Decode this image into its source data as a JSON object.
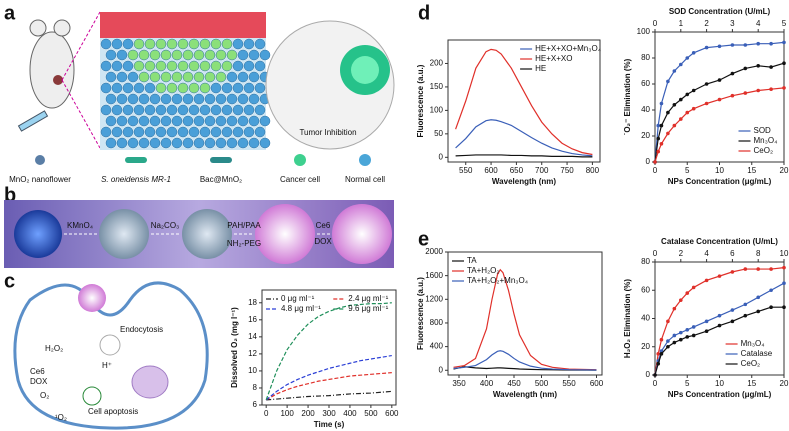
{
  "panels": {
    "a": {
      "label": "a",
      "inset_text": "Tumor Inhibition",
      "legend": [
        "MnO₂ nanoflower",
        "S. oneidensis MR-1",
        "Bac@MnO₂",
        "Cancer cell",
        "Normal cell"
      ]
    },
    "b": {
      "label": "b",
      "steps": [
        "KMnO₄",
        "Na₂CO₃",
        "PAH/PAA",
        "NH₂-PEG",
        "Ce6",
        "DOX"
      ]
    },
    "c": {
      "label": "c",
      "texts": [
        "Endocytosis",
        "H₂O₂",
        "H⁺",
        "Ce6",
        "DOX",
        "O₂",
        "¹O₂",
        "Cell apoptosis"
      ]
    },
    "d": {
      "label": "d"
    },
    "e": {
      "label": "e"
    }
  },
  "chart_data": [
    {
      "type": "line",
      "x_label": "Time (s)",
      "y_label": "Dissolved O₂ (mg l⁻¹)",
      "x": [
        0,
        50,
        100,
        150,
        200,
        250,
        300,
        350,
        400,
        450,
        500,
        550,
        600
      ],
      "xlim": [
        -20,
        620
      ],
      "xticks": [
        0,
        100,
        200,
        300,
        400,
        500,
        600
      ],
      "ylim": [
        6,
        19.5
      ],
      "yticks": [
        6,
        8,
        10,
        12,
        14,
        16,
        18
      ],
      "legend": "upper left",
      "legend_columns": 2,
      "series": [
        {
          "name": "0 μg ml⁻¹",
          "color": "#222222",
          "dash": "dashdot",
          "values": [
            6.6,
            6.7,
            6.8,
            6.9,
            7.0,
            7.05,
            7.1,
            7.2,
            7.3,
            7.35,
            7.4,
            7.5,
            7.6
          ]
        },
        {
          "name": "2.4 μg ml⁻¹",
          "color": "#e0302a",
          "dash": "dashed",
          "values": [
            6.6,
            7.3,
            7.8,
            8.2,
            8.5,
            8.8,
            9.0,
            9.2,
            9.4,
            9.5,
            9.6,
            9.7,
            9.8
          ]
        },
        {
          "name": "4.8 μg ml⁻¹",
          "color": "#2b3fd6",
          "dash": "dashed",
          "values": [
            6.6,
            7.6,
            8.4,
            9.0,
            9.5,
            9.9,
            10.3,
            10.6,
            10.9,
            11.2,
            11.4,
            11.6,
            11.8
          ]
        },
        {
          "name": "9.6 μg ml⁻¹",
          "color": "#1f8f5a",
          "dash": "dashed",
          "values": [
            6.6,
            10.0,
            12.5,
            14.2,
            15.5,
            16.4,
            17.0,
            17.4,
            17.7,
            17.8,
            17.9,
            17.9,
            18.0
          ]
        }
      ]
    },
    {
      "type": "line",
      "x_label": "Wavelength (nm)",
      "y_label": "Fluorescence (a.u.)",
      "x": [
        530,
        550,
        570,
        590,
        600,
        610,
        620,
        640,
        660,
        680,
        700,
        720,
        740,
        760,
        780,
        800
      ],
      "xlim": [
        515,
        815
      ],
      "xticks": [
        550,
        600,
        650,
        700,
        750,
        800
      ],
      "ylim": [
        -10,
        250
      ],
      "yticks": [
        0,
        50,
        100,
        150,
        200
      ],
      "legend": "upper right",
      "series": [
        {
          "name": "HE+X+XO+Mn₃O₄",
          "color": "#3a5fb8",
          "values": [
            20,
            40,
            65,
            78,
            80,
            79,
            76,
            68,
            55,
            42,
            30,
            20,
            13,
            8,
            5,
            3
          ]
        },
        {
          "name": "HE+X+XO",
          "color": "#e0302a",
          "values": [
            60,
            120,
            190,
            225,
            230,
            228,
            220,
            190,
            150,
            110,
            75,
            50,
            30,
            18,
            10,
            6
          ]
        },
        {
          "name": "HE",
          "color": "#111111",
          "values": [
            3,
            4,
            5,
            5,
            5,
            5,
            5,
            4,
            4,
            3,
            3,
            2,
            2,
            2,
            1,
            1
          ]
        }
      ]
    },
    {
      "type": "line",
      "x_label": "NPs Concentration (μg/mL)",
      "y_label": "˙O₂⁻ Elimination (%)",
      "x2_label": "SOD Concentration (U/mL)",
      "x2lim": [
        0,
        5
      ],
      "x2ticks": [
        0,
        1,
        2,
        3,
        4,
        5
      ],
      "x": [
        0,
        0.5,
        1,
        2,
        3,
        4,
        5,
        6,
        8,
        10,
        12,
        14,
        16,
        18,
        20
      ],
      "xlim": [
        0,
        20
      ],
      "xticks": [
        0,
        5,
        10,
        15,
        20
      ],
      "ylim": [
        0,
        100
      ],
      "yticks": [
        0,
        20,
        40,
        60,
        80,
        100
      ],
      "legend": "lower right",
      "markers": true,
      "series": [
        {
          "name": "SOD",
          "color": "#3a5fb8",
          "values": [
            0,
            28,
            45,
            62,
            70,
            75,
            80,
            84,
            88,
            89,
            90,
            90,
            91,
            91,
            92
          ]
        },
        {
          "name": "Mn₃O₄",
          "color": "#111111",
          "values": [
            0,
            18,
            28,
            38,
            44,
            48,
            52,
            55,
            60,
            63,
            68,
            72,
            74,
            73,
            76
          ]
        },
        {
          "name": "CeO₂",
          "color": "#e0302a",
          "values": [
            0,
            8,
            14,
            22,
            28,
            33,
            38,
            41,
            45,
            48,
            51,
            53,
            55,
            56,
            57
          ]
        }
      ]
    },
    {
      "type": "line",
      "x_label": "Wavelength (nm)",
      "y_label": "Fluorescence (a.u.)",
      "x": [
        340,
        360,
        380,
        400,
        410,
        420,
        425,
        430,
        440,
        450,
        460,
        480,
        500,
        520,
        550,
        600
      ],
      "xlim": [
        330,
        610
      ],
      "xticks": [
        350,
        400,
        450,
        500,
        550,
        600
      ],
      "ylim": [
        -80,
        2000
      ],
      "yticks": [
        0,
        400,
        800,
        1200,
        1600,
        2000
      ],
      "legend": "upper left",
      "series": [
        {
          "name": "TA",
          "color": "#111111",
          "values": [
            20,
            60,
            40,
            30,
            35,
            40,
            40,
            38,
            32,
            28,
            22,
            15,
            10,
            8,
            5,
            3
          ]
        },
        {
          "name": "TA+H₂O₂",
          "color": "#e0302a",
          "values": [
            50,
            80,
            200,
            700,
            1200,
            1620,
            1700,
            1650,
            1350,
            950,
            600,
            250,
            100,
            50,
            20,
            10
          ]
        },
        {
          "name": "TA+H₂O₂+Mn₃O₄",
          "color": "#3a5fb8",
          "values": [
            30,
            50,
            80,
            180,
            260,
            320,
            330,
            320,
            270,
            200,
            140,
            70,
            35,
            20,
            10,
            5
          ]
        }
      ]
    },
    {
      "type": "line",
      "x_label": "NPs Concentration (μg/mL)",
      "y_label": "H₂O₂ Elimination (%)",
      "x2_label": "Catalase Concentration (U/mL)",
      "x2lim": [
        0,
        10
      ],
      "x2ticks": [
        0,
        2,
        4,
        6,
        8,
        10
      ],
      "x": [
        0,
        0.5,
        1,
        2,
        3,
        4,
        5,
        6,
        8,
        10,
        12,
        14,
        16,
        18,
        20
      ],
      "xlim": [
        0,
        20
      ],
      "xticks": [
        0,
        5,
        10,
        15,
        20
      ],
      "ylim": [
        0,
        80
      ],
      "yticks": [
        0,
        20,
        40,
        60,
        80
      ],
      "legend": "lower right",
      "markers": true,
      "series": [
        {
          "name": "Mn₃O₄",
          "color": "#e0302a",
          "values": [
            0,
            15,
            25,
            38,
            47,
            53,
            58,
            62,
            67,
            70,
            73,
            75,
            75,
            75,
            76
          ]
        },
        {
          "name": "Catalase",
          "color": "#3a5fb8",
          "values": [
            0,
            10,
            17,
            24,
            28,
            30,
            32,
            34,
            38,
            42,
            46,
            50,
            55,
            60,
            65
          ]
        },
        {
          "name": "CeO₂",
          "color": "#111111",
          "values": [
            0,
            8,
            15,
            20,
            23,
            25,
            27,
            28,
            31,
            35,
            38,
            42,
            45,
            48,
            48
          ]
        }
      ]
    }
  ]
}
